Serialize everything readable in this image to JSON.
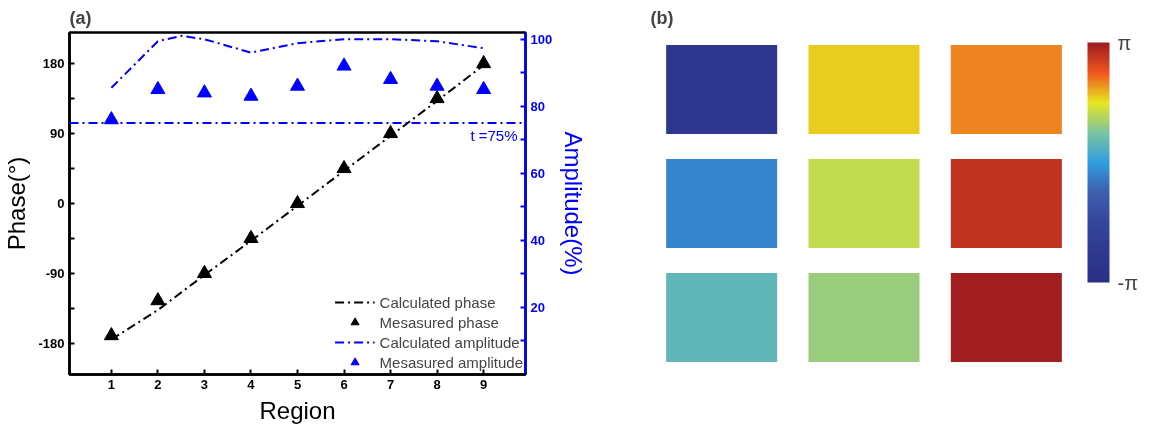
{
  "chart_data": [
    {
      "type": "line",
      "title": "(a)",
      "xlabel": "Region",
      "ylabel": "Phase(°)",
      "y2label": "Amplitude(%)",
      "x": [
        1,
        2,
        3,
        4,
        5,
        6,
        7,
        8,
        9
      ],
      "xlim": [
        0.1,
        9.9
      ],
      "xticks": [
        1,
        2,
        3,
        4,
        5,
        6,
        7,
        8,
        9
      ],
      "ylim": [
        -220,
        220
      ],
      "yticks": [
        {
          "value": -180,
          "label": "-180"
        },
        {
          "value": -135,
          "label": null
        },
        {
          "value": -90,
          "label": "-90"
        },
        {
          "value": -45,
          "label": null
        },
        0,
        {
          "value": 45,
          "label": null
        },
        90,
        {
          "value": 135,
          "label": null
        },
        180
      ],
      "y2lim": [
        0,
        102
      ],
      "y2ticks": [
        {
          "value": 10,
          "label": null
        },
        20,
        {
          "value": 30,
          "label": null
        },
        40,
        {
          "value": 50,
          "label": null
        },
        60,
        {
          "value": 70,
          "label": null
        },
        80,
        {
          "value": 90,
          "label": null
        },
        100
      ],
      "legend": "bottom right",
      "grid": false,
      "series": [
        {
          "name": "Calculated phase",
          "type": "line",
          "color": "#000000",
          "line_style": "dashed",
          "marker": "none",
          "values": [
            -175,
            -137,
            -92,
            -48,
            -3,
            42,
            87,
            132,
            178
          ]
        },
        {
          "name": "Mesasured phase",
          "type": "scatter",
          "color": "#000000",
          "marker": "triangle",
          "values": [
            -170,
            -125,
            -90,
            -45,
            0,
            45,
            90,
            135,
            180
          ]
        },
        {
          "name": "Calculated amplitude",
          "type": "line",
          "axis": "y2",
          "color": "#0000ff",
          "line_style": "dashed",
          "marker": "none",
          "x": [
            1,
            2,
            2.5,
            3,
            4,
            5,
            6,
            7,
            8,
            9
          ],
          "values": [
            85.5,
            99.4,
            101,
            100,
            96,
            98.8,
            100,
            100,
            99.4,
            97.3
          ]
        },
        {
          "name": "Mesasured amplitude",
          "type": "scatter",
          "axis": "y2",
          "color": "#0000ff",
          "marker": "triangle",
          "values": [
            76,
            85,
            84,
            83,
            86,
            92,
            88,
            86,
            85
          ]
        }
      ],
      "ref_lines": [
        {
          "axis": "y2",
          "value": 75,
          "label": "t =75%",
          "color": "#0000ff",
          "line_style": "dashed"
        }
      ]
    },
    {
      "type": "heatmap",
      "title": "(b)",
      "categories": [
        null,
        null,
        null
      ],
      "y_categories": [
        null,
        null,
        null
      ],
      "cells": [
        [
          -2.6,
          1.7,
          2.1
        ],
        [
          -0.3,
          1.3,
          2.8
        ],
        [
          0.5,
          1.0,
          3.1
        ]
      ],
      "clim": [
        -3.1416,
        3.1416
      ],
      "cticks": [
        {
          "value": -3.1416,
          "label": "-π"
        },
        {
          "value": 3.1416,
          "label": "π"
        }
      ],
      "colors": [
        "#2b2f86",
        "#2f3990",
        "#34479c",
        "#3d5fae",
        "#2f9ee0",
        "#7cc4a0",
        "#e8e620",
        "#f0561f",
        "#9e1b20"
      ]
    }
  ]
}
